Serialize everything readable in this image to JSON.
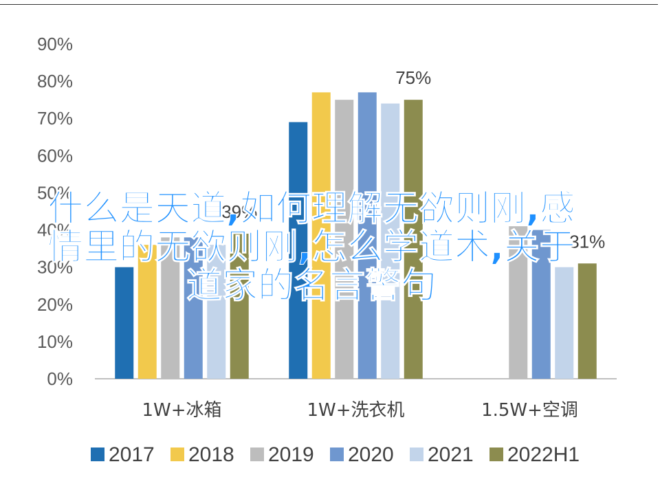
{
  "chart_data": {
    "type": "bar",
    "categories": [
      "1W+冰箱",
      "1W+洗衣机",
      "1.5W+空调"
    ],
    "series": [
      {
        "name": "2017",
        "color": "#1f6fb2",
        "values": [
          30,
          69,
          null
        ]
      },
      {
        "name": "2018",
        "color": "#f2c94c",
        "values": [
          36,
          77,
          null
        ]
      },
      {
        "name": "2019",
        "color": "#bdbdbd",
        "values": [
          38,
          75,
          41
        ]
      },
      {
        "name": "2020",
        "color": "#6f97cf",
        "values": [
          38,
          77,
          40
        ]
      },
      {
        "name": "2021",
        "color": "#c2d4ea",
        "values": [
          36,
          74,
          30
        ]
      },
      {
        "name": "2022H1",
        "color": "#8c8c4f",
        "values": [
          39,
          75,
          31
        ]
      }
    ],
    "data_labels": [
      {
        "category": 0,
        "series": 5,
        "text": "39%"
      },
      {
        "category": 1,
        "series": 5,
        "text": "75%"
      },
      {
        "category": 2,
        "series": 5,
        "text": "31%"
      }
    ],
    "yticks": [
      "0%",
      "10%",
      "20%",
      "30%",
      "40%",
      "50%",
      "60%",
      "70%",
      "80%",
      "90%"
    ],
    "ylim": [
      0,
      90
    ],
    "grid": false,
    "legend": "bottom"
  },
  "watermark": "什么是天道,如何理解无欲则刚,感\n情里的无欲则刚,怎么学道术,关于\n道家的名言警句"
}
